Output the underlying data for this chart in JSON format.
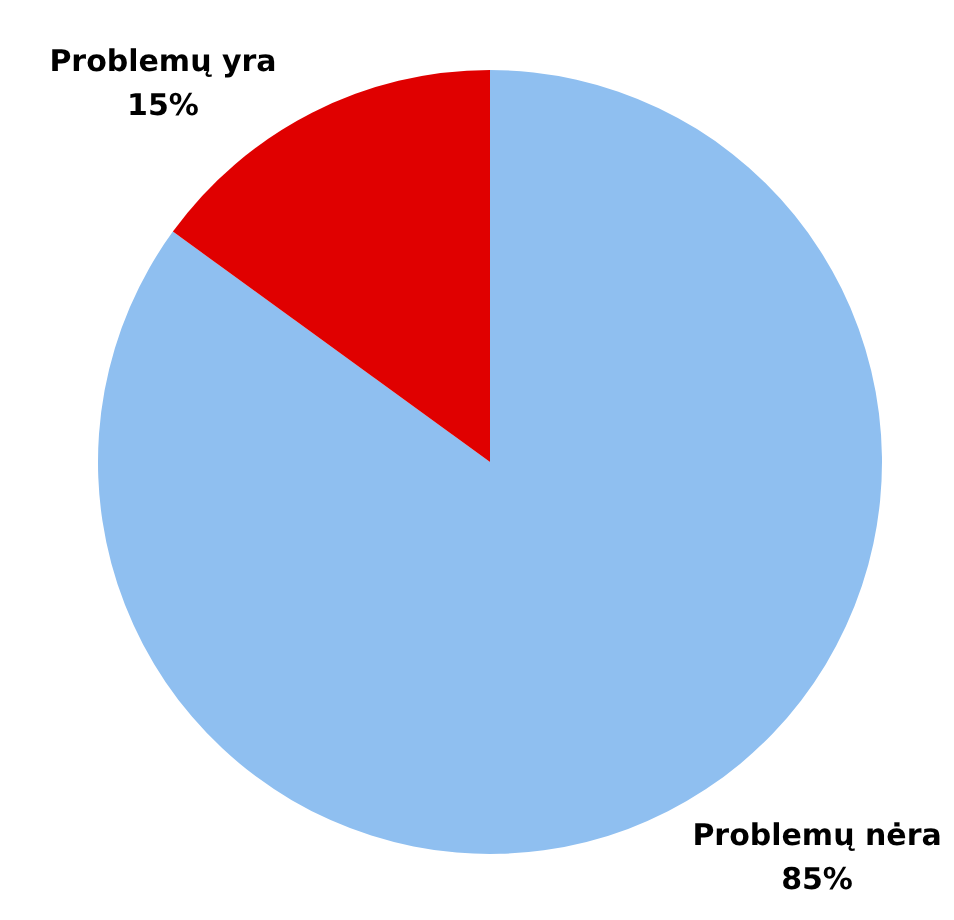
{
  "chart_data": {
    "type": "pie",
    "categories": [
      "Problemų nėra",
      "Problemų yra"
    ],
    "values": [
      85,
      15
    ],
    "value_labels": [
      "85%",
      "15%"
    ],
    "colors": [
      "#8fbff0",
      "#e00000"
    ],
    "legend": false
  }
}
